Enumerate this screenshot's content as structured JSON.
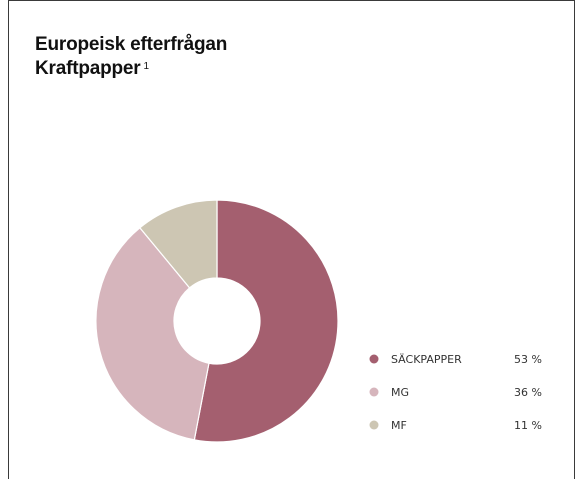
{
  "header": {
    "title_line1": "Europeisk efterfrågan",
    "title_line2": "Kraftpapper",
    "footnote_marker": "1"
  },
  "chart_data": {
    "type": "pie",
    "style": "donut",
    "title": "Europeisk efterfrågan Kraftpapper",
    "legend_placement": "right",
    "slices": [
      {
        "label": "SÄCKPAPPER",
        "value": 53,
        "value_label": "53 %",
        "color": "#a45f6f"
      },
      {
        "label": "MG",
        "value": 36,
        "value_label": "36 %",
        "color": "#d6b5bc"
      },
      {
        "label": "MF",
        "value": 11,
        "value_label": "11 %",
        "color": "#cdc6b3"
      }
    ]
  }
}
